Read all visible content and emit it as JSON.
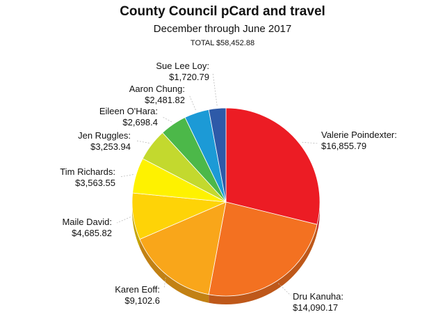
{
  "chart_data": {
    "type": "pie",
    "title": "County Council pCard and travel",
    "subtitle": "December through June 2017",
    "total_label": "TOTAL $58,452.88",
    "slices": [
      {
        "name": "Valerie Poindexter:",
        "value": 16855.79,
        "value_label": "$16,855.79",
        "color": "#ec1c24"
      },
      {
        "name": "Dru Kanuha:",
        "value": 14090.17,
        "value_label": "$14,090.17",
        "color": "#f37121"
      },
      {
        "name": "Karen Eoff:",
        "value": 9102.6,
        "value_label": "$9,102.6",
        "color": "#f9a61a"
      },
      {
        "name": "Maile David:",
        "value": 4685.82,
        "value_label": "$4,685.82",
        "color": "#fed307"
      },
      {
        "name": "Tim Richards:",
        "value": 3563.55,
        "value_label": "$3,563.55",
        "color": "#fef200"
      },
      {
        "name": "Jen Ruggles:",
        "value": 3253.94,
        "value_label": "$3,253.94",
        "color": "#c3d92e"
      },
      {
        "name": "Eileen O'Hara:",
        "value": 2698.4,
        "value_label": "$2,698.4",
        "color": "#4cb849"
      },
      {
        "name": "Aaron Chung:",
        "value": 2481.82,
        "value_label": "$2,481.82",
        "color": "#1c9ad6"
      },
      {
        "name": "Sue Lee Loy:",
        "value": 1720.79,
        "value_label": "$1,720.79",
        "color": "#2e5aa8"
      }
    ]
  }
}
